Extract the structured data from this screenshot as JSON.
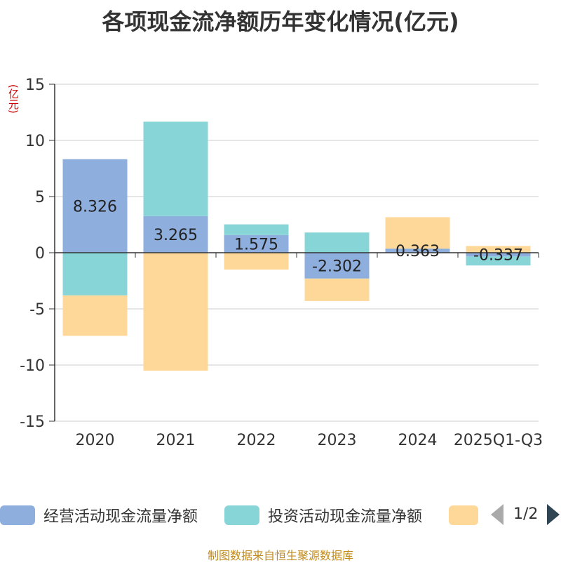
{
  "title": "各项现金流净额历年变化情况(亿元)",
  "unit_label": "(亿元)",
  "footer": "制图数据来自恒生聚源数据库",
  "legend": {
    "items": [
      {
        "label": "经营活动现金流量净额",
        "color": "#8eaedd"
      },
      {
        "label": "投资活动现金流量净额",
        "color": "#88d5d8"
      },
      {
        "label": "",
        "color": "#fdd899"
      }
    ],
    "pager_text": "1/2"
  },
  "chart_data": {
    "type": "bar",
    "stacked": true,
    "categories": [
      "2020",
      "2021",
      "2022",
      "2023",
      "2024",
      "2025Q1-Q3"
    ],
    "series": [
      {
        "name": "经营活动现金流量净额",
        "color": "#8eaedd",
        "values": [
          8.326,
          3.265,
          1.575,
          -2.302,
          0.363,
          -0.337
        ]
      },
      {
        "name": "投资活动现金流量净额",
        "color": "#88d5d8",
        "values": [
          -3.8,
          8.4,
          0.95,
          1.8,
          0,
          -0.8
        ]
      },
      {
        "name": "",
        "color": "#fdd899",
        "values": [
          -3.6,
          -10.5,
          -1.5,
          -2.0,
          2.8,
          0.6
        ]
      }
    ],
    "data_labels": [
      "8.326",
      "3.265",
      "1.575",
      "-2.302",
      "0.363",
      "-0.337"
    ],
    "ylim": [
      -15,
      15
    ],
    "yticks": [
      15,
      10,
      5,
      0,
      -5,
      -10,
      -15
    ],
    "ytick_labels": [
      "15",
      "10",
      "5",
      "0",
      "-5",
      "-10",
      "-15"
    ],
    "grid": true
  }
}
